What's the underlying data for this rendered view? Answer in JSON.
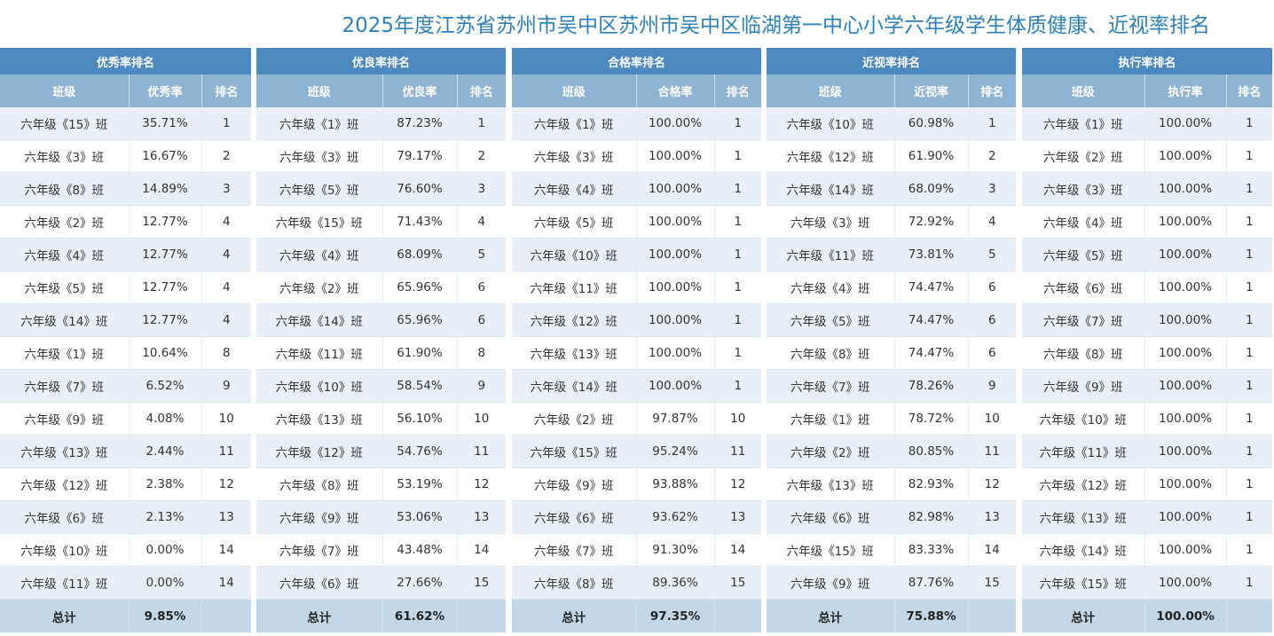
{
  "page": {
    "title": "2025年度江苏省苏州市吴中区苏州市吴中区临湖第一中心小学六年级学生体质健康、近视率排名"
  },
  "colors": {
    "title": "#2e80b8",
    "panel_header": "#4b89be",
    "column_header": "#8fb3d2",
    "row_odd": "#e8eff6",
    "row_even": "#ffffff",
    "total_row": "#c4d7e7"
  },
  "panels": [
    {
      "title": "优秀率排名",
      "col_class": "班级",
      "col_rate": "优秀率",
      "col_rank": "排名",
      "rows": [
        {
          "class": "六年级《15》班",
          "rate": "35.71%",
          "rank": "1"
        },
        {
          "class": "六年级《3》班",
          "rate": "16.67%",
          "rank": "2"
        },
        {
          "class": "六年级《8》班",
          "rate": "14.89%",
          "rank": "3"
        },
        {
          "class": "六年级《2》班",
          "rate": "12.77%",
          "rank": "4"
        },
        {
          "class": "六年级《4》班",
          "rate": "12.77%",
          "rank": "4"
        },
        {
          "class": "六年级《5》班",
          "rate": "12.77%",
          "rank": "4"
        },
        {
          "class": "六年级《14》班",
          "rate": "12.77%",
          "rank": "4"
        },
        {
          "class": "六年级《1》班",
          "rate": "10.64%",
          "rank": "8"
        },
        {
          "class": "六年级《7》班",
          "rate": "6.52%",
          "rank": "9"
        },
        {
          "class": "六年级《9》班",
          "rate": "4.08%",
          "rank": "10"
        },
        {
          "class": "六年级《13》班",
          "rate": "2.44%",
          "rank": "11"
        },
        {
          "class": "六年级《12》班",
          "rate": "2.38%",
          "rank": "12"
        },
        {
          "class": "六年级《6》班",
          "rate": "2.13%",
          "rank": "13"
        },
        {
          "class": "六年级《10》班",
          "rate": "0.00%",
          "rank": "14"
        },
        {
          "class": "六年级《11》班",
          "rate": "0.00%",
          "rank": "14"
        }
      ],
      "total_label": "总计",
      "total_rate": "9.85%"
    },
    {
      "title": "优良率排名",
      "col_class": "班级",
      "col_rate": "优良率",
      "col_rank": "排名",
      "rows": [
        {
          "class": "六年级《1》班",
          "rate": "87.23%",
          "rank": "1"
        },
        {
          "class": "六年级《3》班",
          "rate": "79.17%",
          "rank": "2"
        },
        {
          "class": "六年级《5》班",
          "rate": "76.60%",
          "rank": "3"
        },
        {
          "class": "六年级《15》班",
          "rate": "71.43%",
          "rank": "4"
        },
        {
          "class": "六年级《4》班",
          "rate": "68.09%",
          "rank": "5"
        },
        {
          "class": "六年级《2》班",
          "rate": "65.96%",
          "rank": "6"
        },
        {
          "class": "六年级《14》班",
          "rate": "65.96%",
          "rank": "6"
        },
        {
          "class": "六年级《11》班",
          "rate": "61.90%",
          "rank": "8"
        },
        {
          "class": "六年级《10》班",
          "rate": "58.54%",
          "rank": "9"
        },
        {
          "class": "六年级《13》班",
          "rate": "56.10%",
          "rank": "10"
        },
        {
          "class": "六年级《12》班",
          "rate": "54.76%",
          "rank": "11"
        },
        {
          "class": "六年级《8》班",
          "rate": "53.19%",
          "rank": "12"
        },
        {
          "class": "六年级《9》班",
          "rate": "53.06%",
          "rank": "13"
        },
        {
          "class": "六年级《7》班",
          "rate": "43.48%",
          "rank": "14"
        },
        {
          "class": "六年级《6》班",
          "rate": "27.66%",
          "rank": "15"
        }
      ],
      "total_label": "总计",
      "total_rate": "61.62%"
    },
    {
      "title": "合格率排名",
      "col_class": "班级",
      "col_rate": "合格率",
      "col_rank": "排名",
      "rows": [
        {
          "class": "六年级《1》班",
          "rate": "100.00%",
          "rank": "1"
        },
        {
          "class": "六年级《3》班",
          "rate": "100.00%",
          "rank": "1"
        },
        {
          "class": "六年级《4》班",
          "rate": "100.00%",
          "rank": "1"
        },
        {
          "class": "六年级《5》班",
          "rate": "100.00%",
          "rank": "1"
        },
        {
          "class": "六年级《10》班",
          "rate": "100.00%",
          "rank": "1"
        },
        {
          "class": "六年级《11》班",
          "rate": "100.00%",
          "rank": "1"
        },
        {
          "class": "六年级《12》班",
          "rate": "100.00%",
          "rank": "1"
        },
        {
          "class": "六年级《13》班",
          "rate": "100.00%",
          "rank": "1"
        },
        {
          "class": "六年级《14》班",
          "rate": "100.00%",
          "rank": "1"
        },
        {
          "class": "六年级《2》班",
          "rate": "97.87%",
          "rank": "10"
        },
        {
          "class": "六年级《15》班",
          "rate": "95.24%",
          "rank": "11"
        },
        {
          "class": "六年级《9》班",
          "rate": "93.88%",
          "rank": "12"
        },
        {
          "class": "六年级《6》班",
          "rate": "93.62%",
          "rank": "13"
        },
        {
          "class": "六年级《7》班",
          "rate": "91.30%",
          "rank": "14"
        },
        {
          "class": "六年级《8》班",
          "rate": "89.36%",
          "rank": "15"
        }
      ],
      "total_label": "总计",
      "total_rate": "97.35%"
    },
    {
      "title": "近视率排名",
      "col_class": "班级",
      "col_rate": "近视率",
      "col_rank": "排名",
      "rows": [
        {
          "class": "六年级《10》班",
          "rate": "60.98%",
          "rank": "1"
        },
        {
          "class": "六年级《12》班",
          "rate": "61.90%",
          "rank": "2"
        },
        {
          "class": "六年级《14》班",
          "rate": "68.09%",
          "rank": "3"
        },
        {
          "class": "六年级《3》班",
          "rate": "72.92%",
          "rank": "4"
        },
        {
          "class": "六年级《11》班",
          "rate": "73.81%",
          "rank": "5"
        },
        {
          "class": "六年级《4》班",
          "rate": "74.47%",
          "rank": "6"
        },
        {
          "class": "六年级《5》班",
          "rate": "74.47%",
          "rank": "6"
        },
        {
          "class": "六年级《8》班",
          "rate": "74.47%",
          "rank": "6"
        },
        {
          "class": "六年级《7》班",
          "rate": "78.26%",
          "rank": "9"
        },
        {
          "class": "六年级《1》班",
          "rate": "78.72%",
          "rank": "10"
        },
        {
          "class": "六年级《2》班",
          "rate": "80.85%",
          "rank": "11"
        },
        {
          "class": "六年级《13》班",
          "rate": "82.93%",
          "rank": "12"
        },
        {
          "class": "六年级《6》班",
          "rate": "82.98%",
          "rank": "13"
        },
        {
          "class": "六年级《15》班",
          "rate": "83.33%",
          "rank": "14"
        },
        {
          "class": "六年级《9》班",
          "rate": "87.76%",
          "rank": "15"
        }
      ],
      "total_label": "总计",
      "total_rate": "75.88%"
    },
    {
      "title": "执行率排名",
      "col_class": "班级",
      "col_rate": "执行率",
      "col_rank": "排名",
      "rows": [
        {
          "class": "六年级《1》班",
          "rate": "100.00%",
          "rank": "1"
        },
        {
          "class": "六年级《2》班",
          "rate": "100.00%",
          "rank": "1"
        },
        {
          "class": "六年级《3》班",
          "rate": "100.00%",
          "rank": "1"
        },
        {
          "class": "六年级《4》班",
          "rate": "100.00%",
          "rank": "1"
        },
        {
          "class": "六年级《5》班",
          "rate": "100.00%",
          "rank": "1"
        },
        {
          "class": "六年级《6》班",
          "rate": "100.00%",
          "rank": "1"
        },
        {
          "class": "六年级《7》班",
          "rate": "100.00%",
          "rank": "1"
        },
        {
          "class": "六年级《8》班",
          "rate": "100.00%",
          "rank": "1"
        },
        {
          "class": "六年级《9》班",
          "rate": "100.00%",
          "rank": "1"
        },
        {
          "class": "六年级《10》班",
          "rate": "100.00%",
          "rank": "1"
        },
        {
          "class": "六年级《11》班",
          "rate": "100.00%",
          "rank": "1"
        },
        {
          "class": "六年级《12》班",
          "rate": "100.00%",
          "rank": "1"
        },
        {
          "class": "六年级《13》班",
          "rate": "100.00%",
          "rank": "1"
        },
        {
          "class": "六年级《14》班",
          "rate": "100.00%",
          "rank": "1"
        },
        {
          "class": "六年级《15》班",
          "rate": "100.00%",
          "rank": "1"
        }
      ],
      "total_label": "总计",
      "total_rate": "100.00%"
    }
  ]
}
